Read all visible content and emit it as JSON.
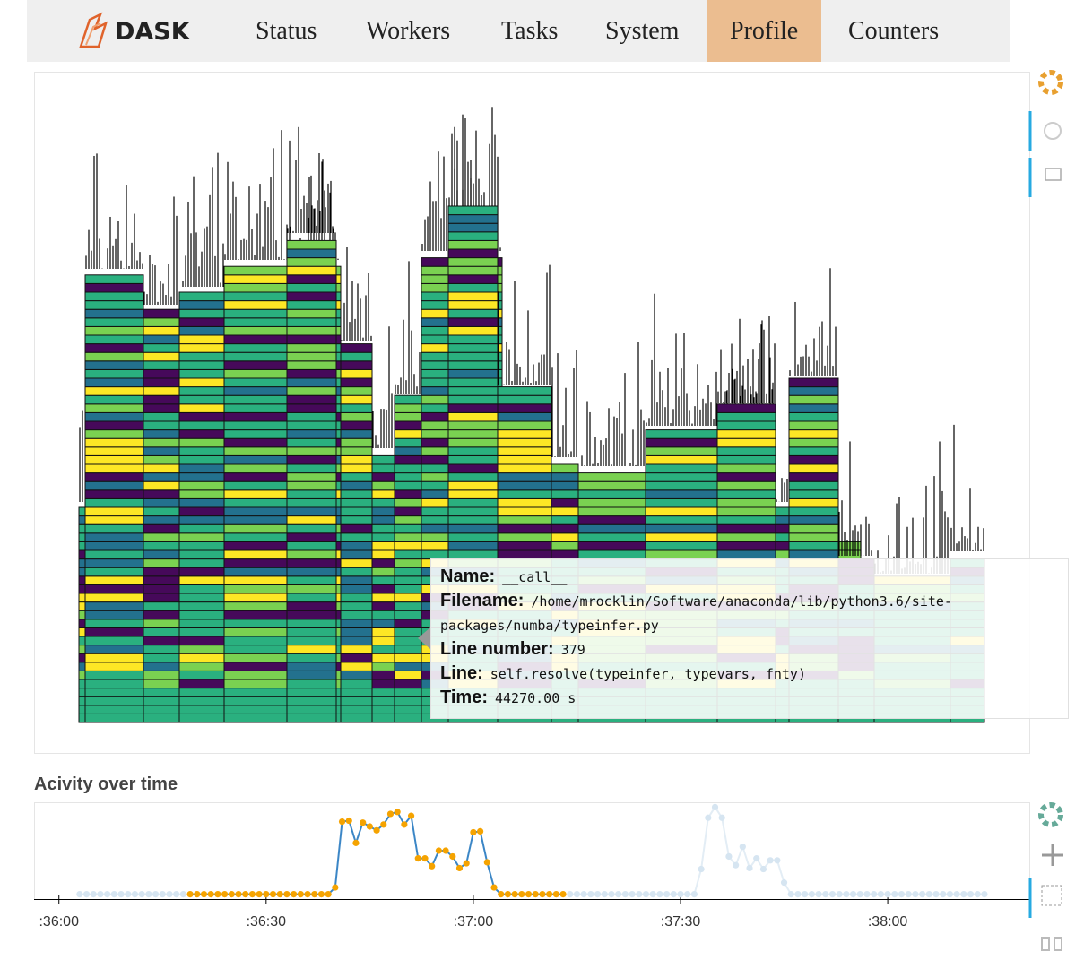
{
  "nav": {
    "brand": "DASK",
    "items": [
      "Status",
      "Workers",
      "Tasks",
      "System",
      "Profile",
      "Counters"
    ],
    "active": 4
  },
  "profile_tooltip": [
    {
      "label": "Name:",
      "value": "__call__"
    },
    {
      "label": "Filename:",
      "value": "/home/mrocklin/Software/anaconda/lib/python3.6/site-packages/numba/typeinfer.py"
    },
    {
      "label": "Line number:",
      "value": "379"
    },
    {
      "label": "Line:",
      "value": "self.resolve(typeinfer, typevars, fnty)"
    },
    {
      "label": "Time:",
      "value": "44270.00 s"
    }
  ],
  "chart_data": {
    "type": "line",
    "title": "Acivity over time",
    "x": [
      3,
      4,
      5,
      6,
      7,
      8,
      9,
      10,
      11,
      12,
      13,
      14,
      15,
      16,
      17,
      18,
      19,
      20,
      21,
      22,
      23,
      24,
      25,
      26,
      27,
      28,
      29,
      30,
      31,
      32,
      33,
      34,
      35,
      36,
      37,
      38,
      39,
      40,
      41,
      42,
      43,
      44,
      45,
      46,
      47,
      48,
      49,
      50,
      51,
      52,
      53,
      54,
      55,
      56,
      57,
      58,
      59,
      60,
      61,
      62,
      63,
      64,
      65,
      66,
      67,
      68,
      69,
      70,
      71,
      72,
      73,
      74,
      75,
      76,
      77,
      78,
      79,
      80,
      81,
      82,
      83,
      84,
      85,
      86,
      87,
      88,
      89,
      90,
      91,
      92,
      93,
      94,
      95,
      96,
      97,
      98,
      99,
      100,
      101,
      102,
      103,
      104,
      105,
      106,
      107,
      108,
      109,
      110,
      111,
      112,
      113,
      114,
      115,
      116,
      117,
      118,
      119,
      120,
      121,
      122,
      123,
      124,
      125,
      126,
      127,
      128,
      129,
      130,
      131,
      132,
      133,
      134
    ],
    "xlim": [
      -3.6,
      140.5
    ],
    "xticks": [
      {
        "value": 0,
        "label": ":36:00"
      },
      {
        "value": 30,
        "label": ":36:30"
      },
      {
        "value": 60,
        "label": ":37:00"
      },
      {
        "value": 90,
        "label": ":37:30"
      },
      {
        "value": 120,
        "label": ":38:00"
      }
    ],
    "ylim": [
      0,
      100
    ],
    "series": [
      {
        "color": "#f5a300",
        "line_color": "#3b86c6",
        "values": [
          null,
          null,
          null,
          null,
          null,
          null,
          null,
          null,
          null,
          null,
          null,
          null,
          null,
          null,
          null,
          null,
          5,
          5,
          5,
          5,
          5,
          5,
          5,
          5,
          5,
          5,
          5,
          5,
          5,
          5,
          5,
          5,
          5,
          5,
          5,
          5,
          5,
          12,
          80,
          81,
          58,
          79,
          75,
          71,
          77,
          88,
          90,
          77,
          86,
          42,
          42,
          34,
          50,
          50,
          44,
          32,
          37,
          69,
          70,
          38,
          12,
          5,
          5,
          5,
          5,
          5,
          5,
          5,
          5,
          5,
          5,
          null,
          null,
          null,
          null,
          null,
          null,
          null,
          null,
          null,
          null,
          null,
          null,
          null,
          null,
          null,
          null,
          null,
          null,
          null,
          null,
          null,
          null,
          null,
          null,
          null,
          null,
          null,
          null,
          null,
          null,
          null,
          null,
          null,
          null,
          null,
          null,
          null,
          null,
          null,
          null,
          null,
          null,
          null,
          null,
          null,
          null,
          null,
          null,
          null,
          null,
          null,
          null,
          null,
          null,
          null,
          null,
          null,
          null,
          null,
          null,
          null
        ]
      },
      {
        "color": "#d6e5f1",
        "line_color": "#e3edf5",
        "values": [
          5,
          5,
          5,
          5,
          5,
          5,
          5,
          5,
          5,
          5,
          5,
          5,
          5,
          5,
          5,
          5,
          null,
          null,
          null,
          null,
          null,
          null,
          null,
          null,
          null,
          null,
          null,
          null,
          null,
          null,
          null,
          null,
          null,
          null,
          null,
          null,
          null,
          null,
          null,
          null,
          null,
          null,
          null,
          null,
          null,
          null,
          null,
          null,
          null,
          null,
          null,
          null,
          null,
          null,
          null,
          null,
          null,
          null,
          null,
          null,
          null,
          null,
          null,
          null,
          null,
          null,
          null,
          null,
          null,
          null,
          null,
          5,
          5,
          5,
          5,
          5,
          5,
          5,
          5,
          5,
          5,
          5,
          5,
          5,
          5,
          5,
          5,
          5,
          5,
          5,
          31,
          84,
          95,
          84,
          44,
          35,
          54,
          32,
          42,
          31,
          40,
          40,
          17,
          5,
          5,
          5,
          5,
          5,
          5,
          5,
          5,
          5,
          5,
          5,
          5,
          5,
          5,
          5,
          5,
          5,
          5,
          5,
          5,
          5,
          5,
          5,
          5,
          5,
          5,
          5,
          5,
          5
        ]
      }
    ]
  }
}
